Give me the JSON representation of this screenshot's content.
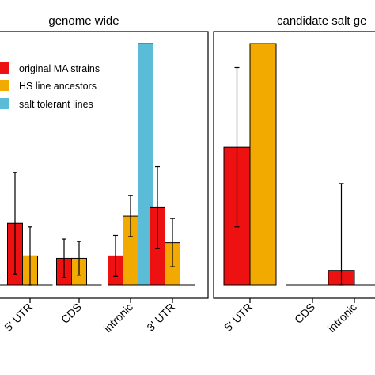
{
  "colors": {
    "original_ma": "#ee1111",
    "hs_ancestors": "#f2aa00",
    "salt_tolerant": "#5bbcd8",
    "frame": "#000000"
  },
  "chart_data": [
    {
      "type": "bar",
      "title": "genome wide",
      "categories": [
        "",
        "5' UTR",
        "CDS",
        "intronic",
        "3' UTR"
      ],
      "ylim": [
        0,
        100
      ],
      "grid": false,
      "legend": {
        "placement": "top-left",
        "entries": [
          "original MA strains",
          "HS line ancestors",
          "salt tolerant lines"
        ]
      },
      "series": [
        {
          "name": "original MA strains",
          "color": "#ee1111",
          "values": [
            0,
            25.5,
            11,
            12,
            32
          ],
          "errors": [
            0,
            21,
            8,
            8.5,
            17
          ]
        },
        {
          "name": "HS line ancestors",
          "color": "#f2aa00",
          "values": [
            0,
            12,
            11,
            28.5,
            17.5
          ],
          "errors": [
            0,
            12,
            7,
            8.5,
            10
          ]
        },
        {
          "name": "salt tolerant lines",
          "color": "#5bbcd8",
          "values": [
            0,
            0,
            0,
            100,
            0
          ],
          "errors": [
            0,
            0,
            0,
            0,
            0
          ]
        }
      ]
    },
    {
      "type": "bar",
      "title": "candidate salt ge",
      "categories": [
        "5' UTR",
        "CDS",
        "intronic"
      ],
      "ylim": [
        0,
        100
      ],
      "grid": false,
      "series": [
        {
          "name": "original MA strains",
          "color": "#ee1111",
          "values": [
            57,
            0,
            6
          ],
          "errors": [
            33,
            0,
            36
          ]
        },
        {
          "name": "HS line ancestors",
          "color": "#f2aa00",
          "values": [
            100,
            0,
            0
          ],
          "errors": [
            0,
            0,
            0
          ]
        }
      ]
    }
  ]
}
